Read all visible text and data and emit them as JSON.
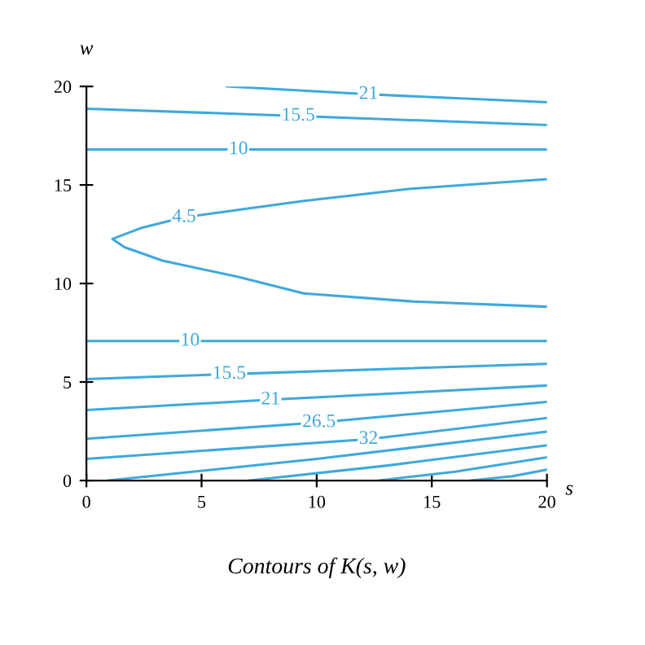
{
  "chart_data": {
    "type": "line",
    "title": "Contours of K(s, w)",
    "xlabel": "s",
    "ylabel": "w",
    "xlim": [
      0,
      20
    ],
    "ylim": [
      0,
      20
    ],
    "xticks": [
      0,
      5,
      10,
      15,
      20
    ],
    "yticks": [
      0,
      5,
      10,
      15,
      20
    ],
    "grid": false,
    "legend": false,
    "marker": "none",
    "line_style": "solid",
    "series": [
      {
        "color": "#3fa9dc",
        "x": [
          6.1,
          12.25,
          20
        ],
        "values": [
          20.0,
          19.6,
          19.2
        ]
      },
      {
        "color": "#3fa9dc",
        "x": [
          0,
          9.2,
          20
        ],
        "values": [
          18.87,
          18.5,
          18.04
        ]
      },
      {
        "color": "#3fa9dc",
        "x": [
          0,
          6.6,
          20
        ],
        "values": [
          16.8,
          16.8,
          16.8
        ]
      },
      {
        "color": "#3fa9dc",
        "x": [
          20,
          14.0,
          9.43,
          4.24,
          2.36,
          1.13,
          1.65,
          3.3,
          6.6,
          9.43,
          14.13,
          20
        ],
        "values": [
          15.29,
          14.8,
          14.19,
          13.36,
          12.81,
          12.26,
          11.84,
          11.16,
          10.33,
          9.5,
          9.09,
          8.82
        ]
      },
      {
        "color": "#3fa9dc",
        "x": [
          0,
          4.5,
          20
        ],
        "values": [
          7.08,
          7.08,
          7.08
        ]
      },
      {
        "color": "#3fa9dc",
        "x": [
          0,
          6.2,
          20
        ],
        "values": [
          5.15,
          5.4,
          5.92
        ]
      },
      {
        "color": "#3fa9dc",
        "x": [
          0,
          8.0,
          20
        ],
        "values": [
          3.58,
          4.1,
          4.82
        ]
      },
      {
        "color": "#3fa9dc",
        "x": [
          0,
          10.1,
          20
        ],
        "values": [
          2.12,
          2.95,
          3.99
        ]
      },
      {
        "color": "#3fa9dc",
        "x": [
          0,
          12.25,
          20
        ],
        "values": [
          1.1,
          2.1,
          3.17
        ]
      },
      {
        "color": "#3fa9dc",
        "x": [
          0.94,
          10,
          20
        ],
        "values": [
          0,
          1.1,
          2.48
        ]
      },
      {
        "color": "#3fa9dc",
        "x": [
          7.07,
          13,
          20
        ],
        "values": [
          0,
          0.75,
          1.79
        ]
      },
      {
        "color": "#3fa9dc",
        "x": [
          12.7,
          16,
          20
        ],
        "values": [
          0,
          0.45,
          1.18
        ]
      },
      {
        "color": "#3fa9dc",
        "x": [
          16.7,
          18.5,
          20
        ],
        "values": [
          0,
          0.22,
          0.55
        ]
      }
    ],
    "annotations": [
      {
        "text": "21",
        "x": 12.25,
        "y": 19.6
      },
      {
        "text": "15.5",
        "x": 9.2,
        "y": 18.5
      },
      {
        "text": "10",
        "x": 6.6,
        "y": 16.8
      },
      {
        "text": "4.5",
        "x": 4.24,
        "y": 13.36
      },
      {
        "text": "10",
        "x": 4.5,
        "y": 7.08
      },
      {
        "text": "15.5",
        "x": 6.2,
        "y": 5.4
      },
      {
        "text": "21",
        "x": 8.0,
        "y": 4.1
      },
      {
        "text": "26.5",
        "x": 10.1,
        "y": 2.95
      },
      {
        "text": "32",
        "x": 12.25,
        "y": 2.1
      }
    ]
  }
}
